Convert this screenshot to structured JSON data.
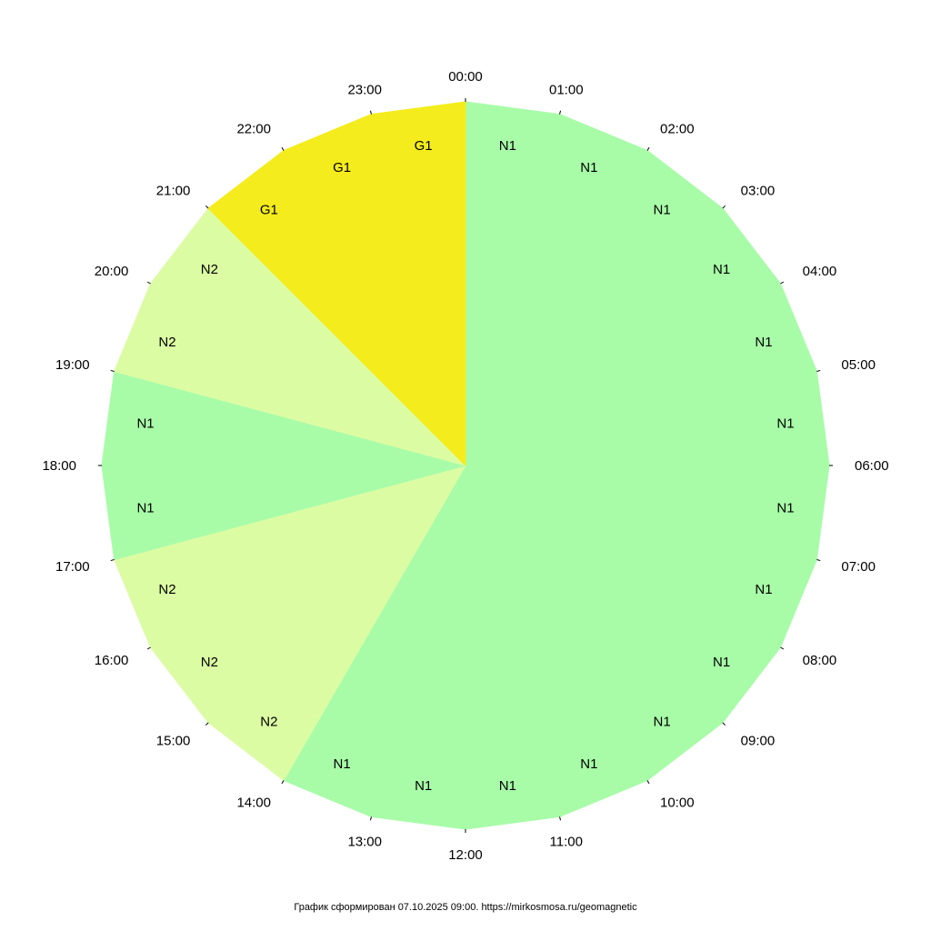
{
  "chart_data": {
    "type": "pie",
    "title": "",
    "hour_labels": [
      "00:00",
      "01:00",
      "02:00",
      "03:00",
      "04:00",
      "05:00",
      "06:00",
      "07:00",
      "08:00",
      "09:00",
      "10:00",
      "11:00",
      "12:00",
      "13:00",
      "14:00",
      "15:00",
      "16:00",
      "17:00",
      "18:00",
      "19:00",
      "20:00",
      "21:00",
      "22:00",
      "23:00"
    ],
    "values": [
      "N1",
      "N1",
      "N1",
      "N1",
      "N1",
      "N1",
      "N1",
      "N1",
      "N1",
      "N1",
      "N1",
      "N1",
      "N1",
      "N1",
      "N2",
      "N2",
      "N2",
      "N1",
      "N1",
      "N2",
      "N2",
      "G1",
      "G1",
      "G1"
    ],
    "colors": {
      "N1": "#a8fca8",
      "N2": "#dcfca4",
      "G1": "#f4ec1c"
    },
    "orientation": "clockwise, 00:00 at top"
  },
  "footer": {
    "text": "График сформирован 07.10.2025 09:00. https://mirkosmosa.ru/geomagnetic"
  }
}
